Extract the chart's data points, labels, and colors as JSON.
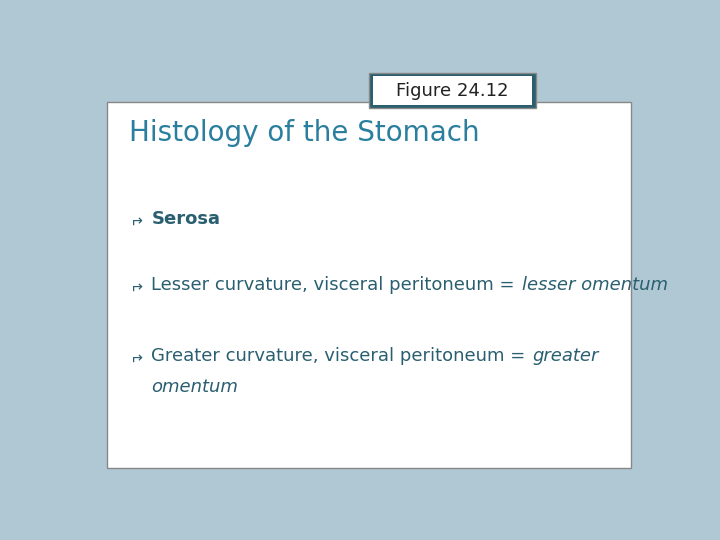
{
  "background_color": "#b0c8d4",
  "card_color": "#ffffff",
  "card_border_color": "#888888",
  "header_bg_color": "#2a5f6e",
  "header_inner_color": "#ffffff",
  "header_text": "Figure 24.12",
  "header_text_color": "#222222",
  "title_text": "Histology of the Stomach",
  "title_color": "#2a7f9e",
  "bullet_color": "#2a5f70",
  "bullets": [
    {
      "label": "Serosa",
      "label_bold": true,
      "rest": "",
      "rest_italic": false
    },
    {
      "label": "Lesser curvature, visceral peritoneum = ",
      "label_bold": false,
      "rest": "lesser omentum",
      "rest_italic": true
    },
    {
      "label": "Greater curvature, visceral peritoneum = ",
      "label_bold": false,
      "rest": "greater",
      "rest2": "omentum",
      "rest_italic": true
    }
  ],
  "fig_width": 7.2,
  "fig_height": 5.4,
  "dpi": 100
}
